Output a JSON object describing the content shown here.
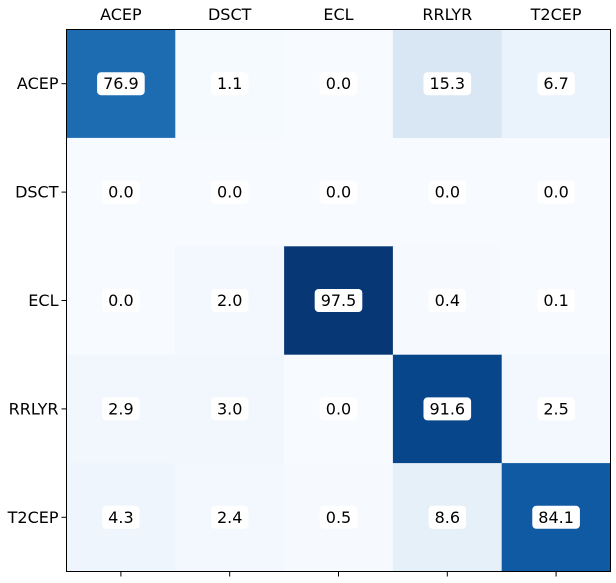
{
  "chart_data": {
    "type": "heatmap",
    "title": "",
    "xlabel": "",
    "ylabel": "",
    "x_categories": [
      "ACEP",
      "DSCT",
      "ECL",
      "RRLYR",
      "T2CEP"
    ],
    "y_categories": [
      "ACEP",
      "DSCT",
      "ECL",
      "RRLYR",
      "T2CEP"
    ],
    "x_axis_position": "top",
    "values": [
      [
        76.9,
        1.1,
        0.0,
        15.3,
        6.7
      ],
      [
        0.0,
        0.0,
        0.0,
        0.0,
        0.0
      ],
      [
        0.0,
        2.0,
        97.5,
        0.4,
        0.1
      ],
      [
        2.9,
        3.0,
        0.0,
        91.6,
        2.5
      ],
      [
        4.3,
        2.4,
        0.5,
        8.6,
        84.1
      ]
    ],
    "value_format": "0.0",
    "colormap": "Blues",
    "vmin": 0,
    "vmax": 100,
    "grid": false,
    "legend": "none",
    "label_box_color": "#ffffff"
  }
}
